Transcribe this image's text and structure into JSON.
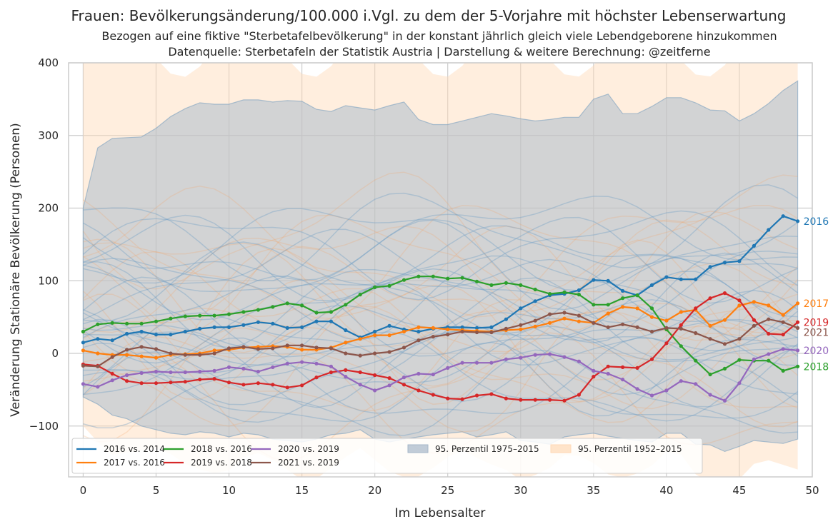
{
  "chart_data": {
    "type": "line",
    "title": "Frauen: Bevölkerungsänderung/100.000 i.Vgl. zu dem der 5-Vorjahre mit höchster Lebenserwartung",
    "subtitle_line1": "Bezogen auf eine fiktive \"Sterbetafelbevölkerung\" in der konstant jährlich gleich viele Lebendgeborene hinzukommen",
    "subtitle_line2": "Datenquelle: Sterbetafeln der Statistik Austria | Darstellung & weitere Berechnung: @zeitferne",
    "xlabel": "Im Lebensalter",
    "ylabel": "Veränderung Stationäre Bevölkerung (Personen)",
    "xlim": [
      -1,
      50
    ],
    "ylim": [
      -170,
      400
    ],
    "xticks": [
      0,
      5,
      10,
      15,
      20,
      25,
      30,
      35,
      40,
      45,
      50
    ],
    "yticks": [
      -100,
      0,
      100,
      200,
      300,
      400
    ],
    "ytick_labels": [
      "−100",
      "0",
      "100",
      "200",
      "300",
      "400"
    ],
    "grid": true,
    "legend_position": "lower-left",
    "x": [
      0,
      1,
      2,
      3,
      4,
      5,
      6,
      7,
      8,
      9,
      10,
      11,
      12,
      13,
      14,
      15,
      16,
      17,
      18,
      19,
      20,
      21,
      22,
      23,
      24,
      25,
      26,
      27,
      28,
      29,
      30,
      31,
      32,
      33,
      34,
      35,
      36,
      37,
      38,
      39,
      40,
      41,
      42,
      43,
      44,
      45,
      46,
      47,
      48,
      49
    ],
    "series": [
      {
        "name": "2016 vs. 2014",
        "end_label": "2016",
        "color": "#1f77b4",
        "values": [
          15,
          20,
          18,
          27,
          30,
          26,
          26,
          30,
          34,
          36,
          36,
          39,
          43,
          41,
          35,
          36,
          44,
          44,
          32,
          22,
          30,
          38,
          33,
          30,
          34,
          36,
          36,
          35,
          36,
          47,
          62,
          72,
          80,
          82,
          87,
          101,
          100,
          86,
          80,
          94,
          105,
          102,
          102,
          119,
          125,
          127,
          148,
          170,
          189,
          182
        ]
      },
      {
        "name": "2017 vs. 2016",
        "end_label": "2017",
        "color": "#ff7f0e",
        "values": [
          4,
          0,
          -2,
          -2,
          -4,
          -6,
          -2,
          -1,
          0,
          4,
          5,
          8,
          9,
          10,
          9,
          5,
          5,
          8,
          15,
          20,
          25,
          25,
          30,
          36,
          35,
          33,
          32,
          31,
          30,
          32,
          33,
          37,
          42,
          48,
          44,
          42,
          55,
          64,
          62,
          50,
          45,
          57,
          60,
          38,
          46,
          66,
          71,
          66,
          53,
          69
        ]
      },
      {
        "name": "2018 vs. 2016",
        "end_label": "2018",
        "color": "#2ca02c",
        "values": [
          30,
          40,
          42,
          41,
          41,
          44,
          48,
          51,
          52,
          52,
          54,
          57,
          60,
          64,
          69,
          66,
          56,
          57,
          67,
          81,
          91,
          93,
          101,
          106,
          106,
          103,
          104,
          99,
          94,
          97,
          94,
          88,
          82,
          84,
          81,
          67,
          67,
          76,
          80,
          62,
          33,
          10,
          -10,
          -29,
          -21,
          -9,
          -10,
          -10,
          -24,
          -18
        ]
      },
      {
        "name": "2019 vs. 2018",
        "end_label": "2019",
        "color": "#d62728",
        "values": [
          -15,
          -17,
          -28,
          -38,
          -41,
          -41,
          -40,
          -39,
          -36,
          -35,
          -40,
          -43,
          -41,
          -43,
          -47,
          -44,
          -33,
          -26,
          -23,
          -26,
          -30,
          -34,
          -43,
          -51,
          -57,
          -62,
          -63,
          -58,
          -56,
          -62,
          -64,
          -64,
          -64,
          -65,
          -57,
          -32,
          -18,
          -19,
          -20,
          -8,
          14,
          39,
          62,
          76,
          83,
          73,
          46,
          27,
          26,
          43
        ]
      },
      {
        "name": "2020 vs. 2019",
        "end_label": "2020",
        "color": "#9467bd",
        "values": [
          -42,
          -46,
          -37,
          -30,
          -27,
          -25,
          -26,
          -26,
          -25,
          -24,
          -19,
          -21,
          -25,
          -19,
          -14,
          -12,
          -14,
          -18,
          -32,
          -43,
          -51,
          -44,
          -33,
          -28,
          -29,
          -20,
          -13,
          -13,
          -13,
          -8,
          -6,
          -2,
          -1,
          -5,
          -11,
          -24,
          -28,
          -36,
          -49,
          -58,
          -51,
          -38,
          -42,
          -57,
          -65,
          -41,
          -8,
          -1,
          6,
          4
        ]
      },
      {
        "name": "2021 vs. 2019",
        "end_label": "2021",
        "color": "#8c564b",
        "values": [
          -17,
          -18,
          -5,
          5,
          9,
          6,
          0,
          -2,
          -2,
          0,
          7,
          9,
          6,
          7,
          11,
          11,
          8,
          7,
          0,
          -3,
          0,
          2,
          8,
          18,
          23,
          26,
          30,
          29,
          29,
          34,
          39,
          45,
          54,
          56,
          52,
          42,
          36,
          40,
          36,
          30,
          35,
          34,
          28,
          20,
          13,
          20,
          38,
          47,
          43,
          35
        ]
      }
    ],
    "bands": [
      {
        "name": "95. Perzentil 1975–2015",
        "color": "#a6b7c9",
        "upper": [
          200,
          283,
          296,
          297,
          298,
          310,
          326,
          337,
          345,
          343,
          343,
          349,
          349,
          346,
          348,
          347,
          336,
          333,
          341,
          338,
          335,
          341,
          346,
          322,
          315,
          315,
          320,
          325,
          330,
          327,
          323,
          320,
          322,
          325,
          325,
          350,
          357,
          330,
          330,
          340,
          352,
          352,
          345,
          335,
          334,
          320,
          330,
          344,
          362,
          375
        ],
        "lower": [
          -60,
          -70,
          -85,
          -90,
          -100,
          -105,
          -110,
          -112,
          -108,
          -110,
          -115,
          -110,
          -112,
          -118,
          -120,
          -122,
          -118,
          -112,
          -110,
          -105,
          -118,
          -122,
          -118,
          -115,
          -112,
          -110,
          -108,
          -115,
          -112,
          -108,
          -120,
          -122,
          -125,
          -115,
          -112,
          -110,
          -114,
          -117,
          -120,
          -122,
          -110,
          -110,
          -125,
          -126,
          -135,
          -128,
          -120,
          -122,
          -124,
          -118
        ]
      },
      {
        "name": "95. Perzentil 1952–2015",
        "color": "#ffd9b5"
      }
    ]
  },
  "legend": {
    "items": [
      {
        "label": "2016 vs. 2014",
        "kind": "line",
        "color": "#1f77b4"
      },
      {
        "label": "2017 vs. 2016",
        "kind": "line",
        "color": "#ff7f0e"
      },
      {
        "label": "2018 vs. 2016",
        "kind": "line",
        "color": "#2ca02c"
      },
      {
        "label": "2019 vs. 2018",
        "kind": "line",
        "color": "#d62728"
      },
      {
        "label": "2020 vs. 2019",
        "kind": "line",
        "color": "#9467bd"
      },
      {
        "label": "2021 vs. 2019",
        "kind": "line",
        "color": "#8c564b"
      },
      {
        "label": "95. Perzentil 1975–2015",
        "kind": "patch",
        "color": "#a6b7c9"
      },
      {
        "label": "95. Perzentil 1952–2015",
        "kind": "patch",
        "color": "#ffd9b5"
      }
    ]
  }
}
